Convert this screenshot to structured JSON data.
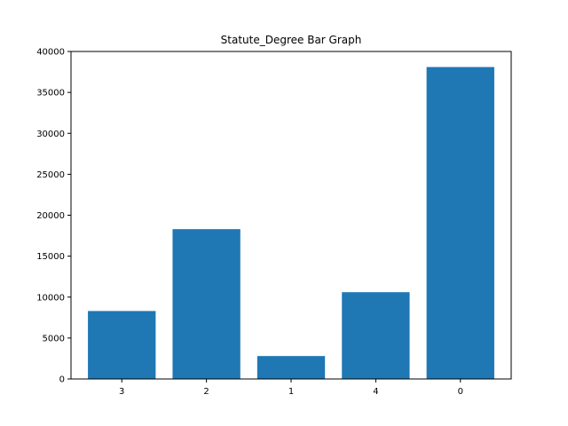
{
  "chart_data": {
    "type": "bar",
    "title": "Statute_Degree Bar Graph",
    "xlabel": "",
    "ylabel": "",
    "categories": [
      "3",
      "2",
      "1",
      "4",
      "0"
    ],
    "values": [
      8300,
      18300,
      2800,
      10600,
      38100
    ],
    "ylim": [
      0,
      40000
    ],
    "yticks": [
      0,
      5000,
      10000,
      15000,
      20000,
      25000,
      30000,
      35000,
      40000
    ],
    "bar_color": "#1f77b4",
    "grid": false,
    "legend": "none"
  }
}
